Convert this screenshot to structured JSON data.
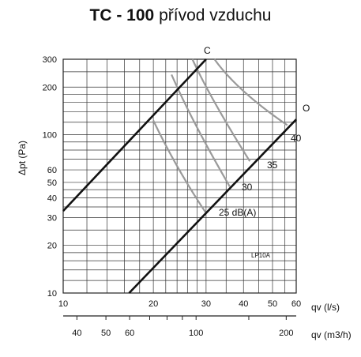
{
  "title": {
    "bold": "TC - 100",
    "rest": "přívod vzduchu"
  },
  "chart_data": {
    "type": "line",
    "scale": "log-log",
    "grid": true,
    "xlabel": "qv (l/s)",
    "xlabel2": "qv (m3/h)",
    "ylabel": "Δpt (Pa)",
    "xlim": [
      10,
      60
    ],
    "ylim": [
      10,
      300
    ],
    "x_ticks": [
      "10",
      "20",
      "30",
      "40",
      "50",
      "60"
    ],
    "x_ticks_m3h": [
      "40",
      "50",
      "60",
      "100",
      "200"
    ],
    "y_ticks": [
      "300",
      "200",
      "100",
      "60",
      "50",
      "40",
      "30",
      "20",
      "10"
    ],
    "series": [
      {
        "name": "C",
        "x": [
          10,
          30
        ],
        "y": [
          33,
          300
        ]
      },
      {
        "name": "O",
        "x": [
          16.6,
          60
        ],
        "y": [
          10,
          125
        ]
      }
    ],
    "noise_curves": [
      {
        "name": "25 dB(A)",
        "x": [
          20,
          24,
          30
        ],
        "y": [
          123,
          60,
          32
        ]
      },
      {
        "name": "30",
        "x": [
          23,
          27,
          36
        ],
        "y": [
          240,
          120,
          47
        ]
      },
      {
        "name": "35",
        "x": [
          27,
          31,
          42
        ],
        "y": [
          300,
          170,
          68
        ]
      },
      {
        "name": "40",
        "x": [
          32,
          38,
          56
        ],
        "y": [
          300,
          190,
          115
        ]
      }
    ],
    "annotations": [
      "LP10A"
    ]
  }
}
